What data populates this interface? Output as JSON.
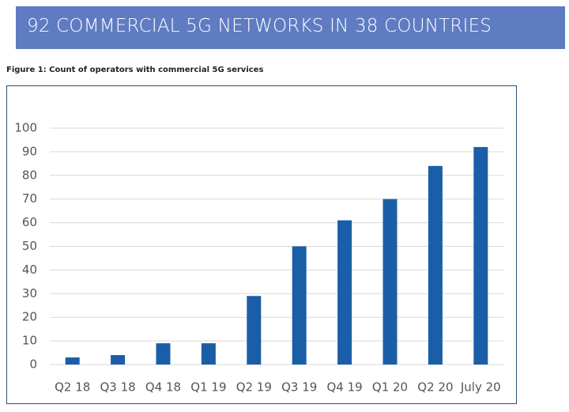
{
  "header": {
    "title": "92 COMMERCIAL 5G NETWORKS IN 38 COUNTRIES"
  },
  "chart_data": {
    "type": "bar",
    "title": "Figure 1: Count of operators with commercial 5G services",
    "categories": [
      "Q2 18",
      "Q3 18",
      "Q4 18",
      "Q1 19",
      "Q2 19",
      "Q3 19",
      "Q4 19",
      "Q1 20",
      "Q2 20",
      "July 20"
    ],
    "values": [
      3,
      4,
      9,
      9,
      29,
      50,
      61,
      70,
      84,
      92
    ],
    "color": "#1b5ea8",
    "ylim": [
      0,
      100
    ],
    "yticks": [
      0,
      10,
      20,
      30,
      40,
      50,
      60,
      70,
      80,
      90,
      100
    ],
    "grid": true
  }
}
